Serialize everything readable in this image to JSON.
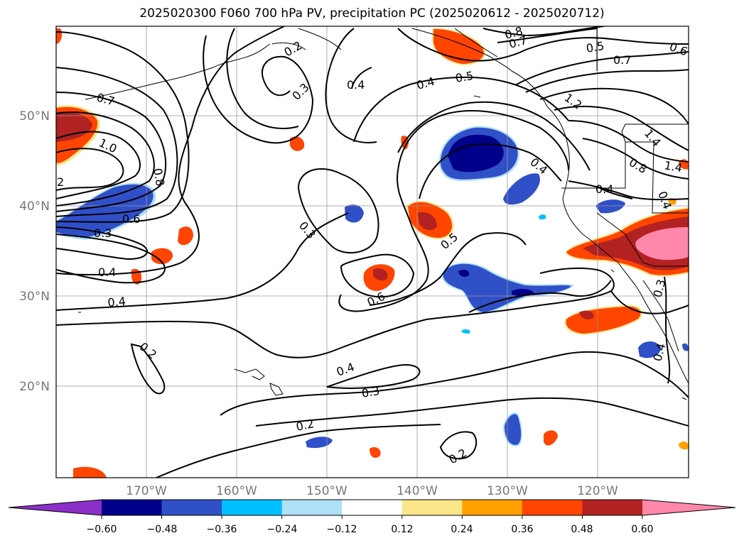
{
  "title": "2025020300 F060 700 hPa PV, precipitation PC (2025020612 - 2025020712)",
  "map": {
    "lon_range": [
      -180,
      -110
    ],
    "lat_range": [
      10,
      60
    ],
    "lat_ticks": [
      "20°N",
      "30°N",
      "40°N",
      "50°N"
    ],
    "lon_ticks": [
      "170°W",
      "160°W",
      "150°W",
      "140°W",
      "130°W",
      "120°W"
    ],
    "grid": true
  },
  "colorbar": {
    "extend": "both",
    "ticks": [
      "−0.60",
      "−0.48",
      "−0.36",
      "−0.24",
      "−0.12",
      "0.12",
      "0.24",
      "0.36",
      "0.48",
      "0.60"
    ],
    "colors": [
      "#8b2fc9",
      "#00008b",
      "#3050c8",
      "#00bfff",
      "#aee0f8",
      "#ffffff",
      "#fde68a",
      "#ffa000",
      "#ff4500",
      "#b22222",
      "#ff88aa"
    ]
  },
  "contour_labels": [
    "0.2",
    "0.3",
    "0.4",
    "0.5",
    "0.6",
    "0.7",
    "0.8",
    "1.0",
    "1.2",
    "1.4",
    "2"
  ],
  "contour_label_instances": [
    {
      "text": "0.2"
    },
    {
      "text": "0.3"
    },
    {
      "text": "0.4"
    },
    {
      "text": "0.4"
    },
    {
      "text": "0.5"
    },
    {
      "text": "0.8"
    },
    {
      "text": "0.7"
    },
    {
      "text": "0.5"
    },
    {
      "text": "0.7"
    },
    {
      "text": "0.6"
    },
    {
      "text": "0.7"
    },
    {
      "text": "1.0"
    },
    {
      "text": "2"
    },
    {
      "text": "0.8"
    },
    {
      "text": "0.6"
    },
    {
      "text": "0.3"
    },
    {
      "text": "0.4"
    },
    {
      "text": "0.4"
    },
    {
      "text": "0.3"
    },
    {
      "text": "0.5"
    },
    {
      "text": "0.6"
    },
    {
      "text": "1.2"
    },
    {
      "text": "1.4"
    },
    {
      "text": "0.8"
    },
    {
      "text": "1.4"
    },
    {
      "text": "0.4"
    },
    {
      "text": "0.4"
    },
    {
      "text": "0.4"
    },
    {
      "text": "0.2"
    },
    {
      "text": "0.4"
    },
    {
      "text": "0.3"
    },
    {
      "text": "0.2"
    },
    {
      "text": "0.2"
    },
    {
      "text": "0.3"
    },
    {
      "text": "0.4"
    }
  ]
}
